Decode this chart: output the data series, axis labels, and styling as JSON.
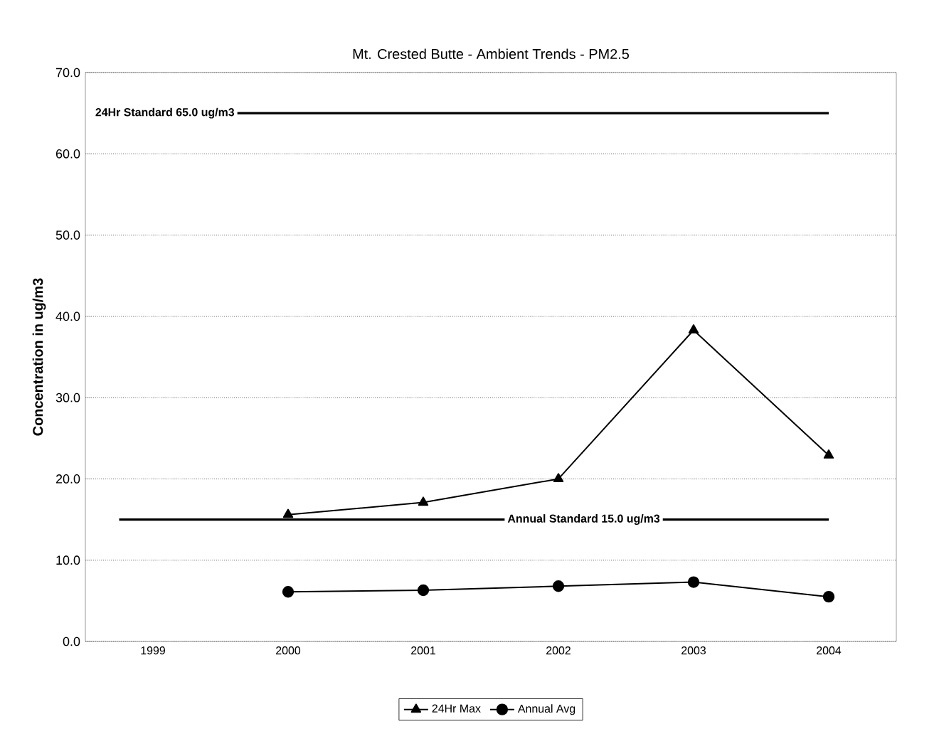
{
  "chart_data": {
    "type": "line",
    "title": "Mt. Crested Butte - Ambient Trends - PM2.5",
    "ylabel": "Concentration in ug/m3",
    "categories": [
      "1999",
      "2000",
      "2001",
      "2002",
      "2003",
      "2004"
    ],
    "series": [
      {
        "name": "24Hr Max",
        "color": "#000000",
        "marker": "triangle",
        "values": [
          null,
          15.6,
          17.1,
          20.0,
          38.3,
          22.9
        ]
      },
      {
        "name": "Annual Avg",
        "color": "#000000",
        "marker": "circle",
        "values": [
          null,
          6.1,
          6.3,
          6.8,
          7.3,
          5.5
        ]
      }
    ],
    "ylim": [
      0,
      70
    ],
    "yticks": [
      {
        "value": 0,
        "label": "0.0"
      },
      {
        "value": 10,
        "label": "10.0"
      },
      {
        "value": 20,
        "label": "20.0"
      },
      {
        "value": 30,
        "label": "30.0"
      },
      {
        "value": 40,
        "label": "40.0"
      },
      {
        "value": 50,
        "label": "50.0"
      },
      {
        "value": 60,
        "label": "60.0"
      },
      {
        "value": 70,
        "label": "70.0"
      }
    ],
    "ref_lines": [
      {
        "axis": "y",
        "value": 65,
        "label": "24Hr Standard 65.0 ug/m3",
        "color": "#000000"
      },
      {
        "axis": "y",
        "value": 15,
        "label": "Annual Standard 15.0 ug/m3",
        "color": "#000000"
      }
    ],
    "grid": "y",
    "legend": "bottom",
    "line_style": "solid"
  }
}
